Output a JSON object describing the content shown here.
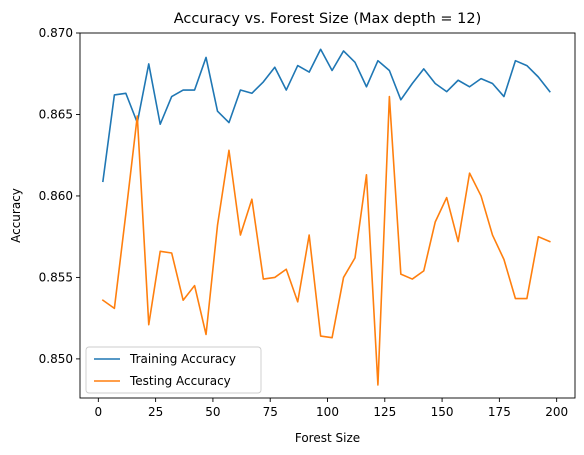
{
  "chart_data": {
    "type": "line",
    "title": "Accuracy vs. Forest Size (Max depth = 12)",
    "xlabel": "Forest Size",
    "ylabel": "Accuracy",
    "xlim": [
      -8,
      208
    ],
    "ylim": [
      0.8476,
      0.87
    ],
    "xticks": [
      0,
      25,
      50,
      75,
      100,
      125,
      150,
      175,
      200
    ],
    "xtick_labels": [
      "0",
      "25",
      "50",
      "75",
      "100",
      "125",
      "150",
      "175",
      "200"
    ],
    "yticks": [
      0.85,
      0.855,
      0.86,
      0.865,
      0.87
    ],
    "ytick_labels": [
      "0.850",
      "0.855",
      "0.860",
      "0.865",
      "0.870"
    ],
    "grid": false,
    "legend_position": "lower-left",
    "x": [
      2,
      7,
      12,
      17,
      22,
      27,
      32,
      37,
      42,
      47,
      52,
      57,
      62,
      67,
      72,
      77,
      82,
      87,
      92,
      97,
      102,
      107,
      112,
      117,
      122,
      127,
      132,
      137,
      142,
      147,
      152,
      157,
      162,
      167,
      172,
      177,
      182,
      187,
      192,
      197
    ],
    "series": [
      {
        "name": "Training Accuracy",
        "color": "#1f77b4",
        "values": [
          0.8609,
          0.8662,
          0.8663,
          0.8645,
          0.8681,
          0.8644,
          0.8661,
          0.8665,
          0.8665,
          0.8685,
          0.8652,
          0.8645,
          0.8665,
          0.8663,
          0.867,
          0.8679,
          0.8665,
          0.868,
          0.8676,
          0.869,
          0.8677,
          0.8689,
          0.8682,
          0.8667,
          0.8683,
          0.8677,
          0.8659,
          0.8669,
          0.8678,
          0.8669,
          0.8664,
          0.8671,
          0.8667,
          0.8672,
          0.8669,
          0.8661,
          0.8683,
          0.868,
          0.8673,
          0.8664
        ]
      },
      {
        "name": "Testing Accuracy",
        "color": "#ff7f0e",
        "values": [
          0.8536,
          0.8531,
          0.8589,
          0.8649,
          0.8521,
          0.8566,
          0.8565,
          0.8536,
          0.8545,
          0.8515,
          0.8582,
          0.8628,
          0.8576,
          0.8598,
          0.8549,
          0.855,
          0.8555,
          0.8535,
          0.8576,
          0.8514,
          0.8513,
          0.855,
          0.8562,
          0.8613,
          0.8484,
          0.8661,
          0.8552,
          0.8549,
          0.8554,
          0.8584,
          0.8599,
          0.8572,
          0.8614,
          0.86,
          0.8576,
          0.8561,
          0.8537,
          0.8537,
          0.8575,
          0.8572
        ]
      }
    ]
  }
}
